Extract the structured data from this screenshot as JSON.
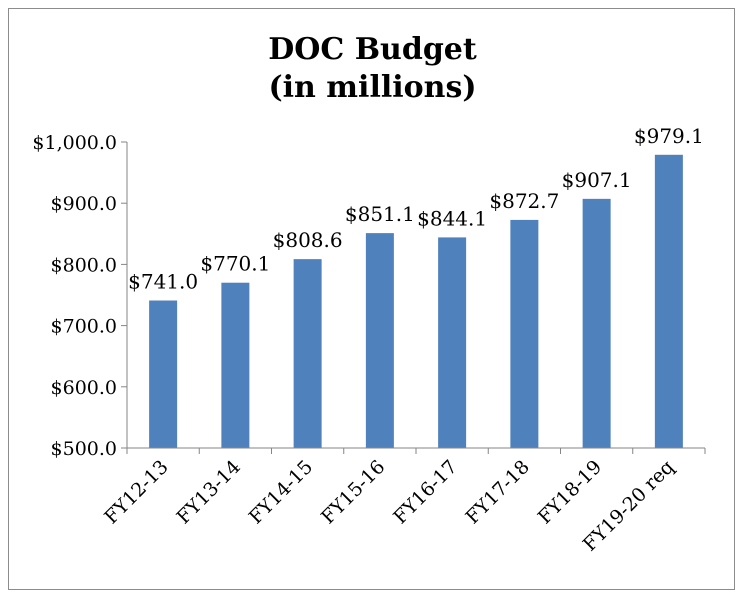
{
  "chart_data": {
    "type": "bar",
    "title_line1": "DOC Budget",
    "title_line2": "(in millions)",
    "categories": [
      "FY12-13",
      "FY13-14",
      "FY14-15",
      "FY15-16",
      "FY16-17",
      "FY17-18",
      "FY18-19",
      "FY19-20 req"
    ],
    "values": [
      741.0,
      770.1,
      808.6,
      851.1,
      844.1,
      872.7,
      907.1,
      979.1
    ],
    "data_labels": [
      "$741.0",
      "$770.1",
      "$808.6",
      "$851.1",
      "$844.1",
      "$872.7",
      "$907.1",
      "$979.1"
    ],
    "ylim": [
      500,
      1000
    ],
    "yticks": [
      500,
      600,
      700,
      800,
      900,
      1000
    ],
    "ytick_labels": [
      "$500.0",
      "$600.0",
      "$700.0",
      "$800.0",
      "$900.0",
      "$1,000.0"
    ],
    "bar_color": "#4f81bd",
    "grid": false,
    "legend": "none"
  }
}
